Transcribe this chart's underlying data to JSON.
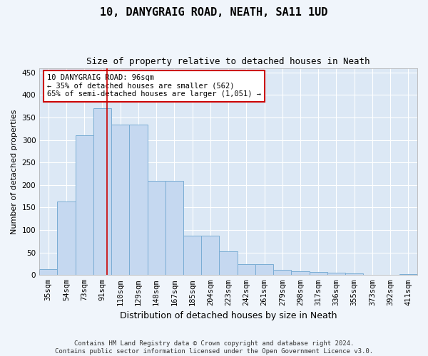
{
  "title": "10, DANYGRAIG ROAD, NEATH, SA11 1UD",
  "subtitle": "Size of property relative to detached houses in Neath",
  "xlabel": "Distribution of detached houses by size in Neath",
  "ylabel": "Number of detached properties",
  "categories": [
    "35sqm",
    "54sqm",
    "73sqm",
    "91sqm",
    "110sqm",
    "129sqm",
    "148sqm",
    "167sqm",
    "185sqm",
    "204sqm",
    "223sqm",
    "242sqm",
    "261sqm",
    "279sqm",
    "298sqm",
    "317sqm",
    "336sqm",
    "355sqm",
    "373sqm",
    "392sqm",
    "411sqm"
  ],
  "bar_values": [
    13,
    163,
    310,
    370,
    335,
    335,
    210,
    210,
    88,
    88,
    52,
    25,
    25,
    12,
    9,
    7,
    5,
    3,
    1,
    1,
    2
  ],
  "bar_color": "#c5d8f0",
  "bar_edge_color": "#7aadd4",
  "vline_x": 3.27,
  "vline_color": "#cc0000",
  "annotation_text": "10 DANYGRAIG ROAD: 96sqm\n← 35% of detached houses are smaller (562)\n65% of semi-detached houses are larger (1,051) →",
  "annotation_box_color": "#cc0000",
  "ylim": [
    0,
    460
  ],
  "yticks": [
    0,
    50,
    100,
    150,
    200,
    250,
    300,
    350,
    400,
    450
  ],
  "footer_line1": "Contains HM Land Registry data © Crown copyright and database right 2024.",
  "footer_line2": "Contains public sector information licensed under the Open Government Licence v3.0.",
  "plot_bg_color": "#dce8f5",
  "fig_bg_color": "#f0f5fb",
  "grid_color": "#ffffff",
  "title_fontsize": 11,
  "subtitle_fontsize": 9,
  "xlabel_fontsize": 9,
  "ylabel_fontsize": 8,
  "tick_fontsize": 7.5,
  "annotation_fontsize": 7.5,
  "footer_fontsize": 6.5
}
